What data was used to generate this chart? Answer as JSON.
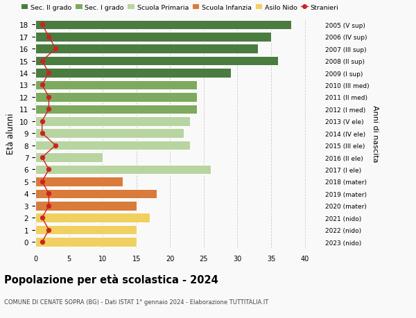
{
  "ages": [
    18,
    17,
    16,
    15,
    14,
    13,
    12,
    11,
    10,
    9,
    8,
    7,
    6,
    5,
    4,
    3,
    2,
    1,
    0
  ],
  "bar_values": [
    38,
    35,
    33,
    36,
    29,
    24,
    24,
    24,
    23,
    22,
    23,
    10,
    26,
    13,
    18,
    15,
    17,
    15,
    15
  ],
  "bar_colors": [
    "#4a7c40",
    "#4a7c40",
    "#4a7c40",
    "#4a7c40",
    "#4a7c40",
    "#7daa5e",
    "#7daa5e",
    "#7daa5e",
    "#b8d4a0",
    "#b8d4a0",
    "#b8d4a0",
    "#b8d4a0",
    "#b8d4a0",
    "#d97b3a",
    "#d97b3a",
    "#d97b3a",
    "#f0d060",
    "#f0d060",
    "#f0d060"
  ],
  "stranieri_values": [
    1,
    2,
    3,
    1,
    2,
    1,
    2,
    2,
    1,
    1,
    3,
    1,
    2,
    1,
    2,
    2,
    1,
    2,
    1
  ],
  "right_labels": [
    "2005 (V sup)",
    "2006 (IV sup)",
    "2007 (III sup)",
    "2008 (II sup)",
    "2009 (I sup)",
    "2010 (III med)",
    "2011 (II med)",
    "2012 (I med)",
    "2013 (V ele)",
    "2014 (IV ele)",
    "2015 (III ele)",
    "2016 (II ele)",
    "2017 (I ele)",
    "2018 (mater)",
    "2019 (mater)",
    "2020 (mater)",
    "2021 (nido)",
    "2022 (nido)",
    "2023 (nido)"
  ],
  "legend_labels": [
    "Sec. II grado",
    "Sec. I grado",
    "Scuola Primaria",
    "Scuola Infanzia",
    "Asilo Nido",
    "Stranieri"
  ],
  "legend_colors": [
    "#4a7c40",
    "#7daa5e",
    "#b8d4a0",
    "#d97b3a",
    "#f0d060",
    "#cc2222"
  ],
  "ylabel": "Età alunni",
  "right_ylabel": "Anni di nascita",
  "title": "Popolazione per età scolastica - 2024",
  "subtitle": "COMUNE DI CENATE SOPRA (BG) - Dati ISTAT 1° gennaio 2024 - Elaborazione TUTTITALIA.IT",
  "xlim": [
    0,
    42
  ],
  "xticks": [
    0,
    5,
    10,
    15,
    20,
    25,
    30,
    35,
    40
  ],
  "stranieri_color": "#cc2222",
  "bg_color": "#f9f9f9",
  "bar_edge_color": "white"
}
